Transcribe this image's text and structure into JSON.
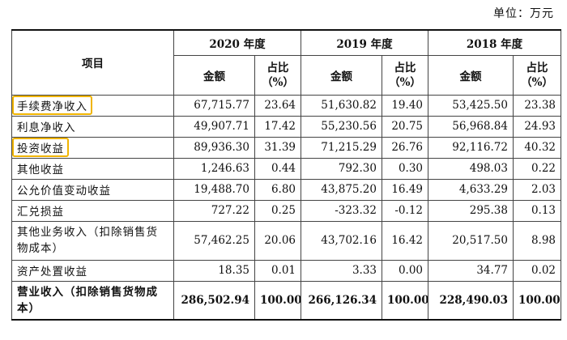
{
  "unit_label": "单位：万元",
  "header": {
    "item": "项目",
    "years": [
      "2020 年度",
      "2019 年度",
      "2018 年度"
    ],
    "amount": "金额",
    "ratio_line1": "占比",
    "ratio_line2": "（%）"
  },
  "rows": [
    {
      "item": "手续费净收入",
      "v": [
        "67,715.77",
        "23.64",
        "51,630.82",
        "19.40",
        "53,425.50",
        "23.38"
      ]
    },
    {
      "item": "利息净收入",
      "v": [
        "49,907.71",
        "17.42",
        "55,230.56",
        "20.75",
        "56,968.84",
        "24.93"
      ]
    },
    {
      "item": "投资收益",
      "v": [
        "89,936.30",
        "31.39",
        "71,215.29",
        "26.76",
        "92,116.72",
        "40.32"
      ]
    },
    {
      "item": "其他收益",
      "v": [
        "1,246.63",
        "0.44",
        "792.30",
        "0.30",
        "498.03",
        "0.22"
      ]
    },
    {
      "item": "公允价值变动收益",
      "v": [
        "19,488.70",
        "6.80",
        "43,875.20",
        "16.49",
        "4,633.29",
        "2.03"
      ]
    },
    {
      "item": "汇兑损益",
      "v": [
        "727.22",
        "0.25",
        "-323.32",
        "-0.12",
        "295.38",
        "0.13"
      ]
    },
    {
      "item": "其他业务收入（扣除销售货物成本）",
      "v": [
        "57,462.25",
        "20.06",
        "43,702.16",
        "16.42",
        "20,517.50",
        "8.98"
      ]
    },
    {
      "item": "资产处置收益",
      "v": [
        "18.35",
        "0.01",
        "3.33",
        "0.00",
        "34.77",
        "0.02"
      ]
    },
    {
      "item": "营业收入（扣除销售货物成本）",
      "v": [
        "286,502.94",
        "100.00",
        "266,126.34",
        "100.00",
        "228,490.03",
        "100.00"
      ]
    }
  ],
  "highlight_color": "#f0b400"
}
